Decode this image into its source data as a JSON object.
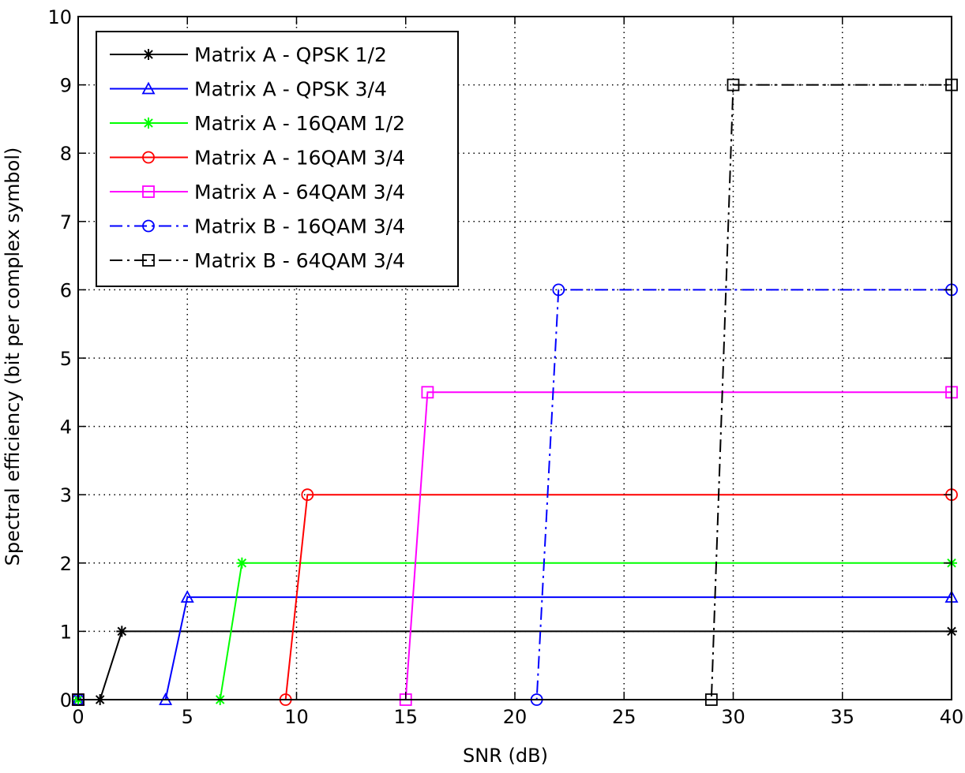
{
  "chart_data": {
    "type": "line",
    "title": "",
    "xlabel": "SNR (dB)",
    "ylabel": "Spectral efficiency (bit per complex symbol)",
    "xlim": [
      0,
      40
    ],
    "ylim": [
      0,
      10
    ],
    "xticks": [
      0,
      5,
      10,
      15,
      20,
      25,
      30,
      35,
      40
    ],
    "yticks": [
      0,
      1,
      2,
      3,
      4,
      5,
      6,
      7,
      8,
      9,
      10
    ],
    "grid": true,
    "legend_position": "top-left",
    "series": [
      {
        "name": "Matrix A - QPSK 1/2",
        "color": "#000000",
        "marker": "star",
        "dash": "solid",
        "x": [
          0,
          1,
          2,
          40
        ],
        "y": [
          0,
          0,
          1,
          1
        ]
      },
      {
        "name": "Matrix A - QPSK 3/4",
        "color": "#0000ff",
        "marker": "triangle",
        "dash": "solid",
        "x": [
          0,
          4,
          5,
          40
        ],
        "y": [
          0,
          0,
          1.5,
          1.5
        ]
      },
      {
        "name": "Matrix A - 16QAM 1/2",
        "color": "#00ff00",
        "marker": "star",
        "dash": "solid",
        "x": [
          0,
          6.5,
          7.5,
          40
        ],
        "y": [
          0,
          0,
          2,
          2
        ]
      },
      {
        "name": "Matrix A - 16QAM 3/4",
        "color": "#ff0000",
        "marker": "circle",
        "dash": "solid",
        "x": [
          0,
          9.5,
          10.5,
          40
        ],
        "y": [
          0,
          0,
          3,
          3
        ]
      },
      {
        "name": "Matrix A - 64QAM 3/4",
        "color": "#ff00ff",
        "marker": "square",
        "dash": "solid",
        "x": [
          0,
          15,
          16,
          40
        ],
        "y": [
          0,
          0,
          4.5,
          4.5
        ]
      },
      {
        "name": "Matrix B - 16QAM 3/4",
        "color": "#0000ff",
        "marker": "circle",
        "dash": "dashdot",
        "x": [
          0,
          21,
          22,
          40
        ],
        "y": [
          0,
          0,
          6,
          6
        ]
      },
      {
        "name": "Matrix B - 64QAM 3/4",
        "color": "#000000",
        "marker": "square",
        "dash": "dashdot",
        "x": [
          0,
          29,
          30,
          40
        ],
        "y": [
          0,
          0,
          9,
          9
        ]
      }
    ]
  }
}
